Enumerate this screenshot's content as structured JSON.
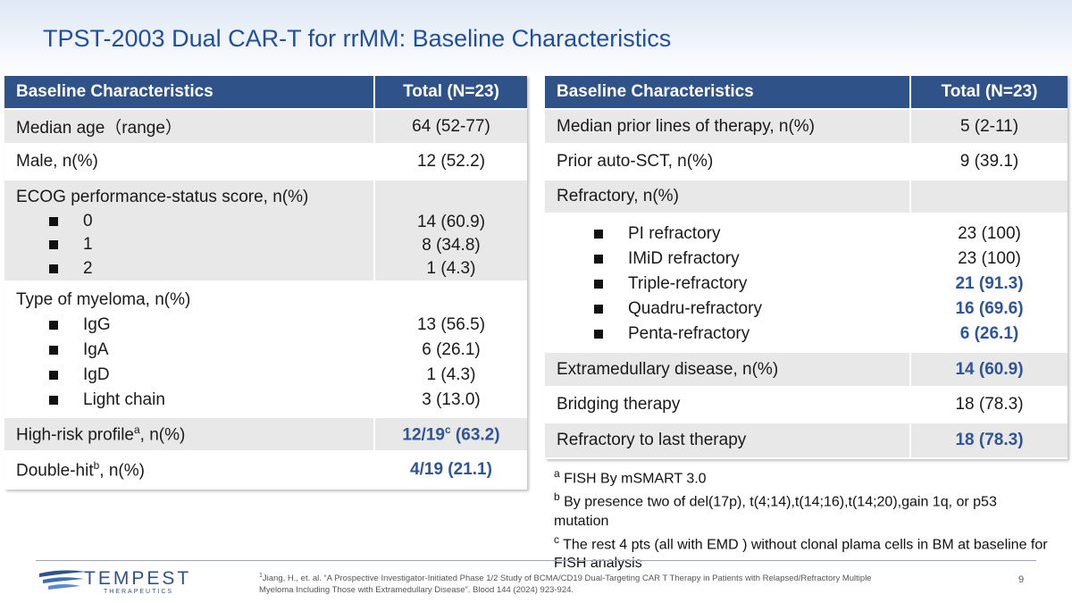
{
  "title": "TPST-2003 Dual CAR-T for rrMM: Baseline Characteristics",
  "tables": [
    {
      "header": [
        "Baseline Characteristics",
        "Total (N=23)"
      ],
      "rows": [
        {
          "label": "Median age（range）",
          "value": "64 (52-77)"
        },
        {
          "label": "Male, n(%)",
          "value": "12 (52.2)"
        },
        {
          "label": "ECOG performance-status score, n(%)",
          "items": [
            {
              "label": "0",
              "value": "14 (60.9)"
            },
            {
              "label": "1",
              "value": "8 (34.8)"
            },
            {
              "label": "2",
              "value": "1 (4.3)"
            }
          ]
        },
        {
          "label": "Type of myeloma, n(%)",
          "items": [
            {
              "label": "IgG",
              "value": "13 (56.5)"
            },
            {
              "label": "IgA",
              "value": "6 (26.1)"
            },
            {
              "label": "IgD",
              "value": "1 (4.3)"
            },
            {
              "label": "Light chain",
              "value": "3 (13.0)"
            }
          ]
        },
        {
          "label": "High-risk profile",
          "label_sup": "a",
          "label_suffix": ", n(%)",
          "value": "12/19",
          "value_sup": "c",
          "value_suffix": " (63.2)",
          "highlight": true
        },
        {
          "label": "Double-hit",
          "label_sup": "b",
          "label_suffix": ", n(%)",
          "value": "4/19 (21.1)",
          "highlight": true
        }
      ]
    },
    {
      "header": [
        "Baseline Characteristics",
        "Total (N=23)"
      ],
      "rows": [
        {
          "label": "Median prior lines of therapy, n(%)",
          "value": "5 (2-11)"
        },
        {
          "label": "Prior auto-SCT, n(%)",
          "value": "9 (39.1)"
        },
        {
          "label": "Refractory, n(%)",
          "items": [
            {
              "label": "PI refractory",
              "value": "23 (100)"
            },
            {
              "label": "IMiD refractory",
              "value": "23 (100)"
            },
            {
              "label": "Triple-refractory",
              "value": "21 (91.3)",
              "highlight": true
            },
            {
              "label": "Quadru-refractory",
              "value": "16 (69.6)",
              "highlight": true
            },
            {
              "label": "Penta-refractory",
              "value": "6 (26.1)",
              "highlight": true
            }
          ]
        },
        {
          "label": "Extramedullary disease, n(%)",
          "value": "14 (60.9)",
          "highlight": true
        },
        {
          "label": "Bridging therapy",
          "value": "18 (78.3)"
        },
        {
          "label": "Refractory to last therapy",
          "value": "18 (78.3)",
          "highlight": true
        }
      ]
    }
  ],
  "footnotes": [
    {
      "mark": "a",
      "text": " FISH By mSMART 3.0"
    },
    {
      "mark": "b",
      "text": " By presence two of del(17p), t(4;14),t(14;16),t(14;20),gain 1q, or p53 mutation"
    },
    {
      "mark": "c",
      "text": " The rest 4 pts (all with EMD ) without clonal plama cells in BM at baseline for FISH analysis"
    }
  ],
  "reference": {
    "mark": "1",
    "text": "Jiang, H., et. al. “A Prospective Investigator-Initiated Phase 1/2 Study of BCMA/CD19 Dual-Targeting CAR T Therapy in Patients with Relapsed/Refractory Multiple Myeloma Including Those with Extramedullary Disease”. Blood 144 (2024) 923-924."
  },
  "logo": {
    "name": "TEMPEST",
    "tagline": "THERAPEUTICS"
  },
  "page_number": "9"
}
